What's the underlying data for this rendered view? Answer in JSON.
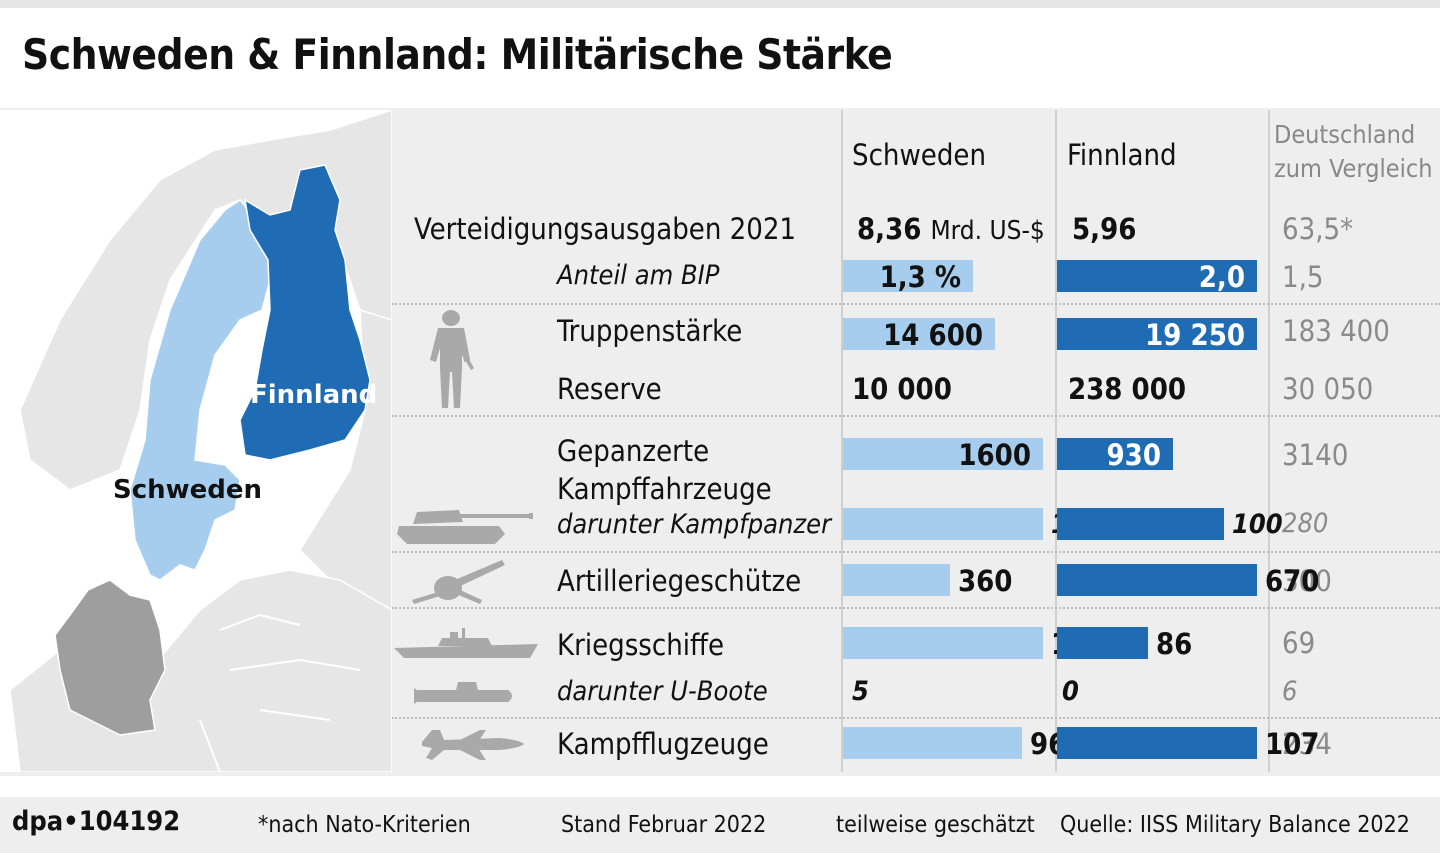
{
  "title": "Schweden & Finnland: Militärische Stärke",
  "columns": {
    "sweden": "Schweden",
    "finland": "Finnland",
    "germany_line1": "Deutschland",
    "germany_line2": "zum Vergleich"
  },
  "map_labels": {
    "finland": "Finnland",
    "sweden": "Schweden"
  },
  "colors": {
    "sweden": "#a6cdee",
    "finland": "#1f6cb5",
    "germany": "#9e9e9e",
    "background": "#eeeeee"
  },
  "rows": {
    "spending": {
      "label": "Verteidigungsausgaben 2021",
      "sweden": "8,36",
      "unit": "Mrd. US-$",
      "finland": "5,96",
      "germany": "63,5*"
    },
    "gdp_share": {
      "label": "Anteil am BIP",
      "sweden": "1,3 %",
      "finland": "2,0",
      "germany": "1,5"
    },
    "troops": {
      "label": "Truppenstärke",
      "sweden": "14 600",
      "finland": "19 250",
      "germany": "183 400"
    },
    "reserve": {
      "label": "Reserve",
      "sweden": "10 000",
      "finland": "238 000",
      "germany": "30 050"
    },
    "armored": {
      "label1": "Gepanzerte",
      "label2": "Kampffahrzeuge",
      "sweden": "1600",
      "finland": "930",
      "germany": "3140"
    },
    "tanks": {
      "label": "darunter Kampfpanzer",
      "sweden": "120",
      "finland": "100",
      "germany": "280"
    },
    "artillery": {
      "label": "Artilleriegeschütze",
      "sweden": "360",
      "finland": "670",
      "germany": "300"
    },
    "warships": {
      "label": "Kriegsschiffe",
      "sweden": "188",
      "finland": "86",
      "germany": "69"
    },
    "submarines": {
      "label": "darunter U-Boote",
      "sweden": "5",
      "finland": "0",
      "germany": "6"
    },
    "aircraft": {
      "label": "Kampfflugzeuge",
      "sweden": "96",
      "finland": "107",
      "germany": "234"
    }
  },
  "icons": [
    "soldier-icon",
    "tank-icon",
    "artillery-icon",
    "warship-icon",
    "submarine-icon",
    "fighter-jet-icon"
  ],
  "chart_data": {
    "type": "bar",
    "categories": [
      "Anteil am BIP",
      "Truppenstärke",
      "Gepanzerte Kampffahrzeuge",
      "darunter Kampfpanzer",
      "Artilleriegeschütze",
      "Kriegsschiffe",
      "Kampfflugzeuge"
    ],
    "series": [
      {
        "name": "Schweden",
        "values": [
          1.3,
          14600,
          1600,
          120,
          360,
          188,
          96
        ]
      },
      {
        "name": "Finnland",
        "values": [
          2.0,
          19250,
          930,
          100,
          670,
          86,
          107
        ]
      }
    ],
    "unbarred_rows": {
      "Verteidigungsausgaben 2021": {
        "Schweden": 8.36,
        "Finnland": 5.96,
        "Deutschland zum Vergleich": 63.5
      },
      "Reserve": {
        "Schweden": 10000,
        "Finnland": 238000,
        "Deutschland zum Vergleich": 30050
      },
      "darunter U-Boote": {
        "Schweden": 5,
        "Finnland": 0,
        "Deutschland zum Vergleich": 6
      }
    },
    "comparison_series": {
      "name": "Deutschland zum Vergleich",
      "values": [
        1.5,
        183400,
        3140,
        280,
        300,
        69,
        234
      ]
    }
  },
  "footer": {
    "source_id": "dpa•104192",
    "note": "*nach Nato-Kriterien",
    "date": "Stand Februar 2022",
    "estimate": "teilweise geschätzt",
    "source": "Quelle: IISS Military Balance 2022"
  }
}
